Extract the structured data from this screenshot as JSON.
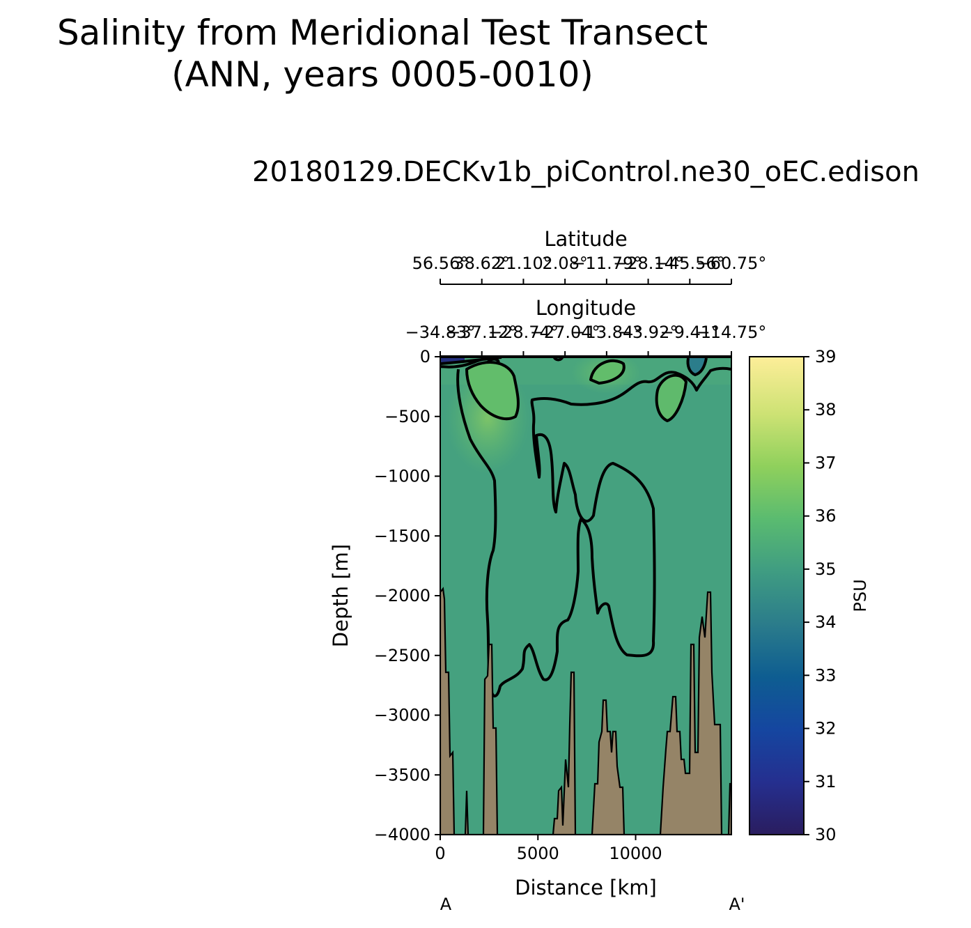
{
  "figure": {
    "suptitle_line1": "Salinity from Meridional Test Transect",
    "suptitle_line2": "(ANN, years 0005-0010)",
    "subtitle": "20180129.DECKv1b_piControl.ne30_oEC.edison"
  },
  "colors": {
    "bathymetry_fill": "#958467",
    "contour_line": "#000000",
    "cmap": [
      "#2a1d5f",
      "#1f3aa0",
      "#0f5896",
      "#2c7b8a",
      "#3f9a83",
      "#4aa47e",
      "#66c16a",
      "#9dd25a",
      "#d1e276",
      "#fdee99"
    ]
  },
  "chart_data": {
    "type": "heatmap",
    "title": "20180129.DECKv1b_piControl.ne30_oEC.edison",
    "xlabel": "Distance [km]",
    "ylabel": "Depth [m]",
    "xlim": [
      0,
      14900
    ],
    "ylim": [
      -4000,
      0
    ],
    "x_ticks": [
      "0",
      "5000",
      "10000"
    ],
    "x_tick_values": [
      0,
      5000,
      10000
    ],
    "y_ticks": [
      "0",
      "−500",
      "−1000",
      "−1500",
      "−2000",
      "−2500",
      "−3000",
      "−3500",
      "−4000"
    ],
    "y_tick_values": [
      0,
      -500,
      -1000,
      -1500,
      -2000,
      -2500,
      -3000,
      -3500,
      -4000
    ],
    "start_label": "A",
    "end_label": "A'",
    "top_axis_latitude": {
      "label": "Latitude",
      "ticks": [
        "56.56°",
        "38.62°",
        "21.10°",
        "2.08°",
        "−11.79°",
        "−28.14°",
        "−45.56°",
        "−60.75°"
      ]
    },
    "top_axis_longitude": {
      "label": "Longitude",
      "ticks": [
        "−34.83°",
        "−37.12°",
        "−28.74°",
        "−27.04°",
        "−13.84°",
        "−3.92°",
        "−9.41°",
        "−14.75°"
      ]
    },
    "colorbar": {
      "label": "PSU",
      "vmin": 30,
      "vmax": 39,
      "ticks": [
        "30",
        "31",
        "32",
        "33",
        "34",
        "35",
        "36",
        "37",
        "38",
        "39"
      ],
      "tick_values": [
        30,
        31,
        32,
        33,
        34,
        35,
        36,
        37,
        38,
        39
      ]
    },
    "contour_levels": [
      34.75,
      35.5
    ]
  }
}
